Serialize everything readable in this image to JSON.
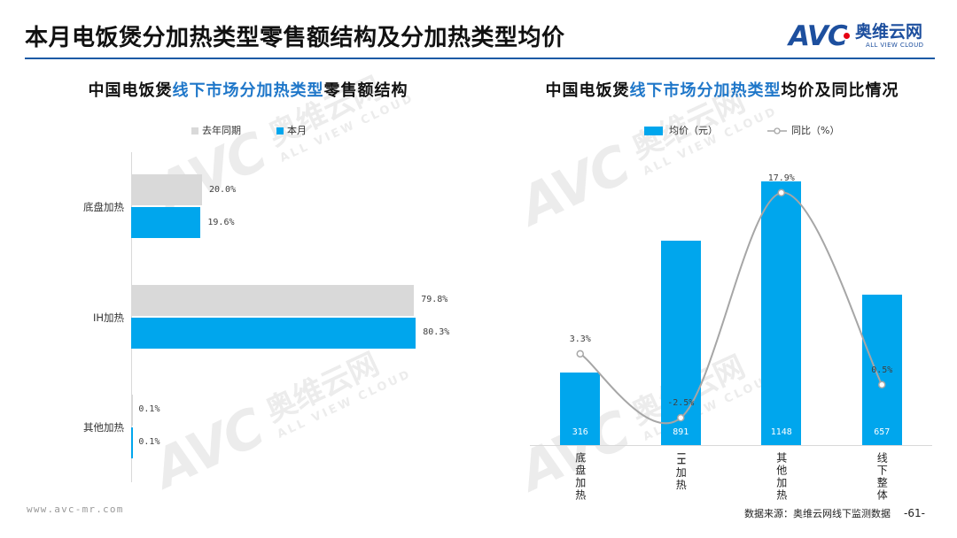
{
  "header": {
    "title": "本月电饭煲分加热类型零售额结构及分加热类型均价"
  },
  "logo": {
    "mark": "AVC",
    "name": "奥维云网",
    "tagline": "ALL VIEW CLOUD"
  },
  "watermark": {
    "mark": "AVC",
    "name": "奥维云网",
    "tagline": "ALL VIEW CLOUD"
  },
  "colors": {
    "header_rule": "#1b5aa5",
    "title_highlight": "#1f77c9",
    "bar_this_month": "#00a6ed",
    "bar_last_year": "#d9d9d9",
    "yoy_line": "#a6a6a6",
    "axis_line": "#d9d9d9",
    "logo_blue": "#1d4f9e",
    "logo_red": "#e60012"
  },
  "chart_data": [
    {
      "type": "bar",
      "orientation": "horizontal",
      "title": {
        "prefix": "中国电饭煲",
        "highlight": "线下市场分加热类型",
        "suffix": "零售额结构"
      },
      "categories": [
        "底盘加热",
        "IH加热",
        "其他加热"
      ],
      "series": [
        {
          "name": "去年同期",
          "values": [
            20.0,
            79.8,
            0.1
          ]
        },
        {
          "name": "本月",
          "values": [
            19.6,
            80.3,
            0.1
          ]
        }
      ],
      "unit": "%",
      "legend": "top",
      "grid": false
    },
    {
      "type": "bar",
      "title": {
        "prefix": "中国电饭煲",
        "highlight": "线下市场分加热类型",
        "suffix": "均价及同比情况"
      },
      "categories": [
        "底盘加热",
        "IH加热",
        "其他加热",
        "线下整体"
      ],
      "series": [
        {
          "name": "均价（元）",
          "type": "bar",
          "values": [
            316,
            891,
            1148,
            657
          ]
        },
        {
          "name": "同比（%）",
          "type": "line",
          "axis": "secondary",
          "unit": "%",
          "values": [
            3.3,
            -2.5,
            17.9,
            0.5
          ]
        }
      ],
      "legend": "top",
      "grid": false
    }
  ],
  "footer": {
    "website": "www.avc-mr.com",
    "source": "数据来源：奥维云网线下监测数据",
    "page": "-61-"
  }
}
